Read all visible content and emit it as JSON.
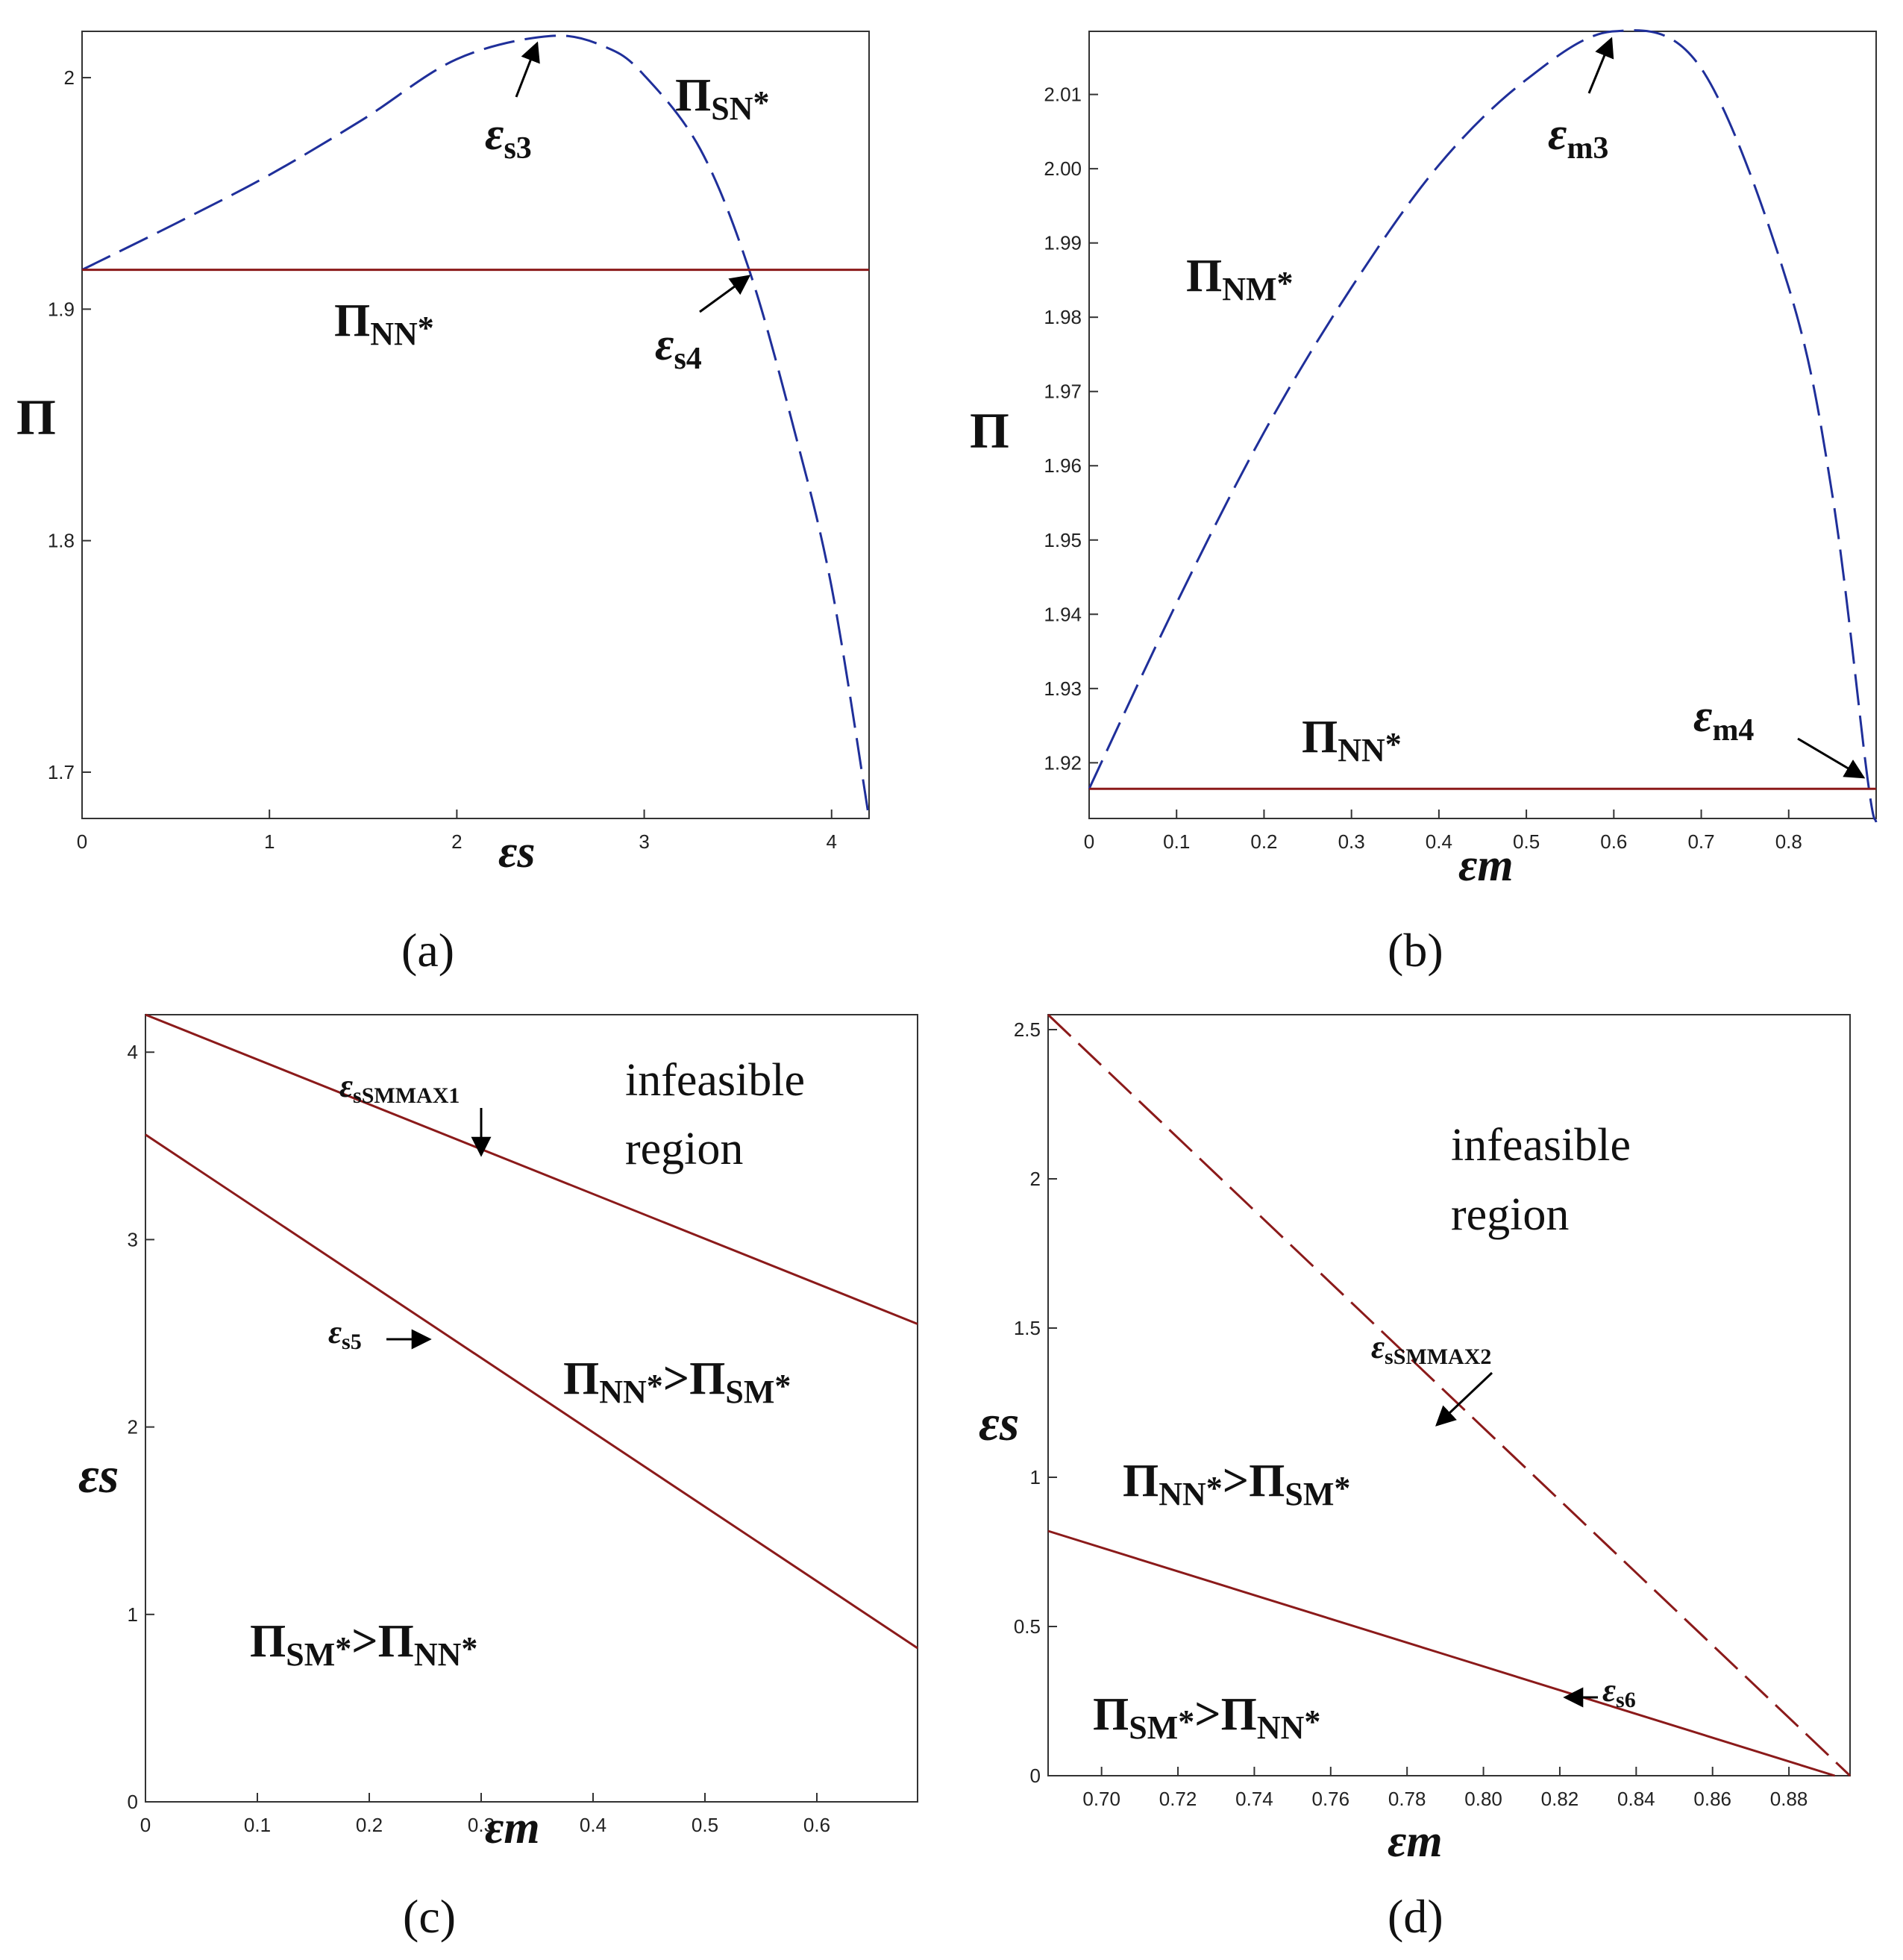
{
  "colors": {
    "blue": "#1f2f9a",
    "red": "#8b1a1a",
    "axis": "#333333"
  },
  "chart_data": [
    {
      "id": "a",
      "type": "line",
      "caption": "(a)",
      "xlabel": "εs",
      "ylabel": "Π",
      "xlim": [
        0,
        4.2
      ],
      "ylim": [
        1.68,
        2.02
      ],
      "xticks": [
        "0",
        "1",
        "2",
        "3",
        "4"
      ],
      "yticks": [
        "1.7",
        "1.8",
        "1.9",
        "2"
      ],
      "series": [
        {
          "name": "ΠSN*",
          "style": "dashed",
          "color": "blue",
          "x": [
            0,
            0.5,
            1.0,
            1.5,
            2.0,
            2.5,
            2.8,
            3.0,
            3.3,
            3.56,
            3.8,
            4.0,
            4.2
          ],
          "y": [
            1.917,
            1.937,
            1.958,
            1.982,
            2.008,
            2.018,
            2.013,
            2.001,
            1.969,
            1.917,
            1.848,
            1.78,
            1.68
          ]
        },
        {
          "name": "ΠNN*",
          "style": "solid",
          "color": "red",
          "x": [
            0,
            4.2
          ],
          "y": [
            1.917,
            1.917
          ]
        }
      ],
      "annotations": [
        {
          "base": "ε",
          "sub": "s3"
        },
        {
          "base": "ε",
          "sub": "s4"
        }
      ]
    },
    {
      "id": "b",
      "type": "line",
      "caption": "(b)",
      "xlabel": "εm",
      "ylabel": "Π",
      "xlim": [
        0,
        0.9
      ],
      "ylim": [
        1.9125,
        2.0185
      ],
      "xticks": [
        "0",
        "0.1",
        "0.2",
        "0.3",
        "0.4",
        "0.5",
        "0.6",
        "0.7",
        "0.8"
      ],
      "yticks": [
        "1.92",
        "1.93",
        "1.94",
        "1.95",
        "1.96",
        "1.97",
        "1.98",
        "1.99",
        "2.00",
        "2.01"
      ],
      "series": [
        {
          "name": "ΠNM*",
          "style": "dashed",
          "color": "blue",
          "x": [
            0,
            0.1,
            0.2,
            0.3,
            0.4,
            0.5,
            0.6,
            0.7,
            0.8,
            0.85,
            0.89,
            0.9
          ],
          "y": [
            1.9165,
            1.9415,
            1.9645,
            1.984,
            2.0005,
            2.012,
            2.0185,
            2.0135,
            1.984,
            1.956,
            1.918,
            1.912
          ]
        },
        {
          "name": "ΠNN*",
          "style": "solid",
          "color": "red",
          "x": [
            0,
            0.9
          ],
          "y": [
            1.9165,
            1.9165
          ]
        }
      ],
      "annotations": [
        {
          "base": "ε",
          "sub": "m3"
        },
        {
          "base": "ε",
          "sub": "m4"
        }
      ]
    },
    {
      "id": "c",
      "type": "line",
      "caption": "(c)",
      "xlabel": "εm",
      "ylabel": "εs",
      "xlim": [
        0,
        0.69
      ],
      "ylim": [
        0,
        4.2
      ],
      "xticks": [
        "0",
        "0.1",
        "0.2",
        "0.3",
        "0.4",
        "0.5",
        "0.6"
      ],
      "yticks": [
        "0",
        "1",
        "2",
        "3",
        "4"
      ],
      "series": [
        {
          "name": "εsSMMAX1",
          "style": "solid",
          "color": "red",
          "x": [
            0,
            0.69
          ],
          "y": [
            4.2,
            2.55
          ]
        },
        {
          "name": "εs5",
          "style": "solid",
          "color": "red",
          "x": [
            0,
            0.69
          ],
          "y": [
            3.56,
            0.82
          ]
        }
      ],
      "annotations": [
        {
          "base": "ε",
          "sub": "sSMMAX1"
        },
        {
          "base": "ε",
          "sub": "s5"
        }
      ],
      "regions": [
        {
          "line1": "infeasible",
          "line2": "region"
        },
        {
          "left": "NN",
          "right": "SM"
        },
        {
          "left": "SM",
          "right": "NN"
        }
      ]
    },
    {
      "id": "d",
      "type": "line",
      "caption": "(d)",
      "xlabel": "εm",
      "ylabel": "εs",
      "xlim": [
        0.686,
        0.896
      ],
      "ylim": [
        0,
        2.55
      ],
      "xticks": [
        "0.70",
        "0.72",
        "0.74",
        "0.76",
        "0.78",
        "0.80",
        "0.82",
        "0.84",
        "0.86",
        "0.88"
      ],
      "yticks": [
        "0",
        "0.5",
        "1",
        "1.5",
        "2",
        "2.5"
      ],
      "series": [
        {
          "name": "εsSMMAX2",
          "style": "dashed",
          "color": "red",
          "x": [
            0.686,
            0.896
          ],
          "y": [
            2.55,
            0.0
          ]
        },
        {
          "name": "εs6",
          "style": "solid",
          "color": "red",
          "x": [
            0.686,
            0.892
          ],
          "y": [
            0.82,
            0.0
          ]
        }
      ],
      "annotations": [
        {
          "base": "ε",
          "sub": "sSMMAX2"
        },
        {
          "base": "ε",
          "sub": "s6"
        }
      ],
      "regions": [
        {
          "line1": "infeasible",
          "line2": "region"
        },
        {
          "left": "NN",
          "right": "SM"
        },
        {
          "left": "SM",
          "right": "NN"
        }
      ]
    }
  ],
  "symbols": {
    "pi": "Π",
    "star": "*",
    "gt": ">"
  }
}
